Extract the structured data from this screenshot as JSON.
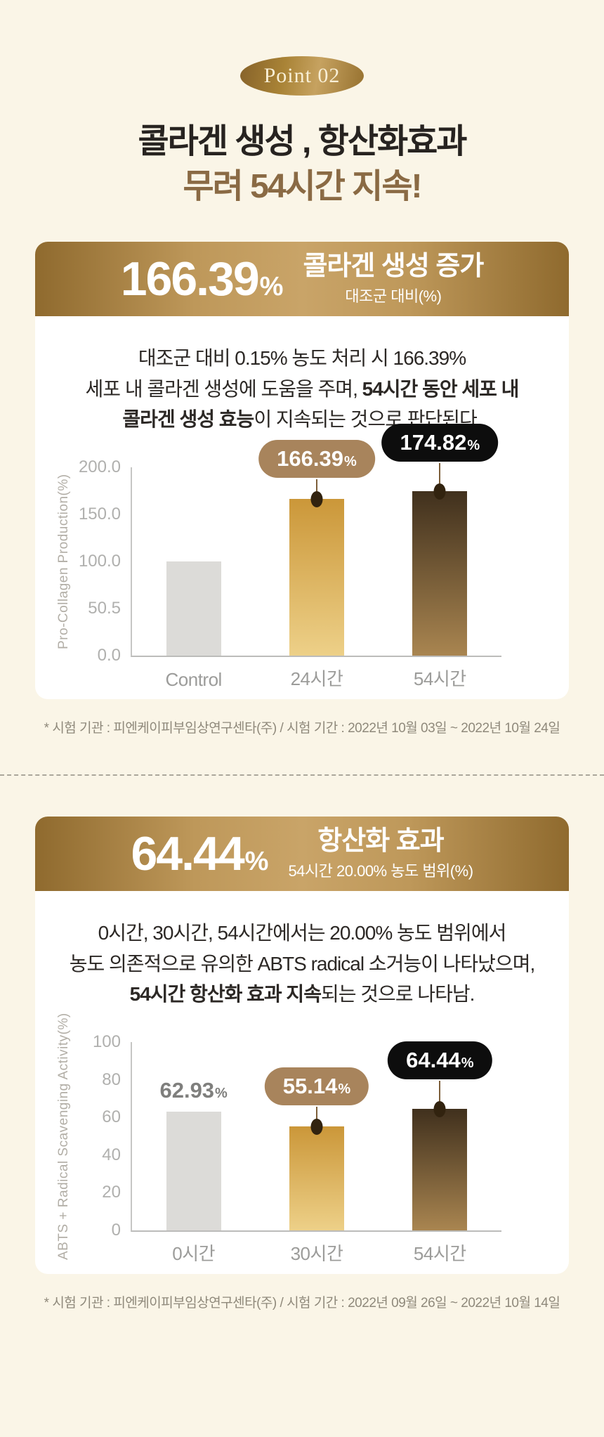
{
  "header": {
    "badge": "Point 02",
    "title_line1": "콜라겐 생성 , 항산화효과",
    "title_line2": "무려 54시간 지속!"
  },
  "sections": [
    {
      "banner": {
        "value": "166.39",
        "unit": "%",
        "heading": "콜라겐 생성 증가",
        "subheading": "대조군 대비(%)"
      },
      "desc": {
        "l1": "대조군 대비 0.15% 농도 처리 시 166.39%",
        "l2a": "세포 내 콜라겐 생성에 도움을 주며,",
        "l2b": " 54시간 동안 세포 내",
        "l3a": "콜라겐 생성 효능",
        "l3b": "이 지속되는 것으로 판단된다."
      },
      "footnote": "* 시험 기관 : 피엔케이피부임상연구센타(주) / 시험 기간 : 2022년 10월 03일 ~ 2022년 10월 24일"
    },
    {
      "banner": {
        "value": "64.44",
        "unit": "%",
        "heading": "항산화 효과",
        "subheading": "54시간 20.00% 농도 범위(%)"
      },
      "desc": {
        "l1": "0시간, 30시간, 54시간에서는 20.00% 농도 범위에서",
        "l2": "농도 의존적으로 유의한 ABTS radical 소거능이 나타났으며,",
        "l3a": "54시간 항산화 효과 지속",
        "l3b": "되는 것으로 나타남."
      },
      "footnote": "* 시험 기관 : 피엔케이피부임상연구센타(주) / 시험 기간 : 2022년 09월 26일 ~ 2022년 10월 14일"
    }
  ],
  "colors": {
    "page_background": "#FAF5E7",
    "title_brown": "#8A6A44",
    "banner_gold": "#BE985A",
    "gray_bar": "#DCDBD8",
    "gold_bar_top": "#CB9739",
    "gold_bar_bottom": "#EDD088",
    "brown_bar_top": "#40301D",
    "brown_bar_bottom": "#A98550",
    "tan_bubble": "#A8845C",
    "black_bubble": "#0D0D0D"
  },
  "chart_data": [
    {
      "type": "bar",
      "title": "콜라겐 생성 증가",
      "categories": [
        "Control",
        "24시간",
        "54시간"
      ],
      "values": [
        100.0,
        166.39,
        174.82
      ],
      "bar_labels": [
        null,
        "166.39%",
        "174.82%"
      ],
      "bar_styles": [
        "gray",
        "gold",
        "brown"
      ],
      "annotations": [
        "none",
        "bubble-tan",
        "bubble-black"
      ],
      "xlabel": "",
      "ylabel": "Pro-Collagen Production(%)",
      "yticks": [
        "200.0",
        "150.0",
        "100.0",
        "50.5",
        "0.0"
      ],
      "ylim": [
        0,
        200
      ],
      "grid": false,
      "legend": "none"
    },
    {
      "type": "bar",
      "title": "항산화 효과",
      "categories": [
        "0시간",
        "30시간",
        "54시간"
      ],
      "values": [
        62.93,
        55.14,
        64.44
      ],
      "bar_labels": [
        "62.93%",
        "55.14%",
        "64.44%"
      ],
      "bar_styles": [
        "gray",
        "gold",
        "brown"
      ],
      "annotations": [
        "text",
        "bubble-tan",
        "bubble-black"
      ],
      "xlabel": "",
      "ylabel": "ABTS + Radical Scavenging Activity(%)",
      "yticks": [
        "100",
        "80",
        "60",
        "40",
        "20",
        "0"
      ],
      "ylim": [
        0,
        100
      ],
      "grid": false,
      "legend": "none"
    }
  ]
}
